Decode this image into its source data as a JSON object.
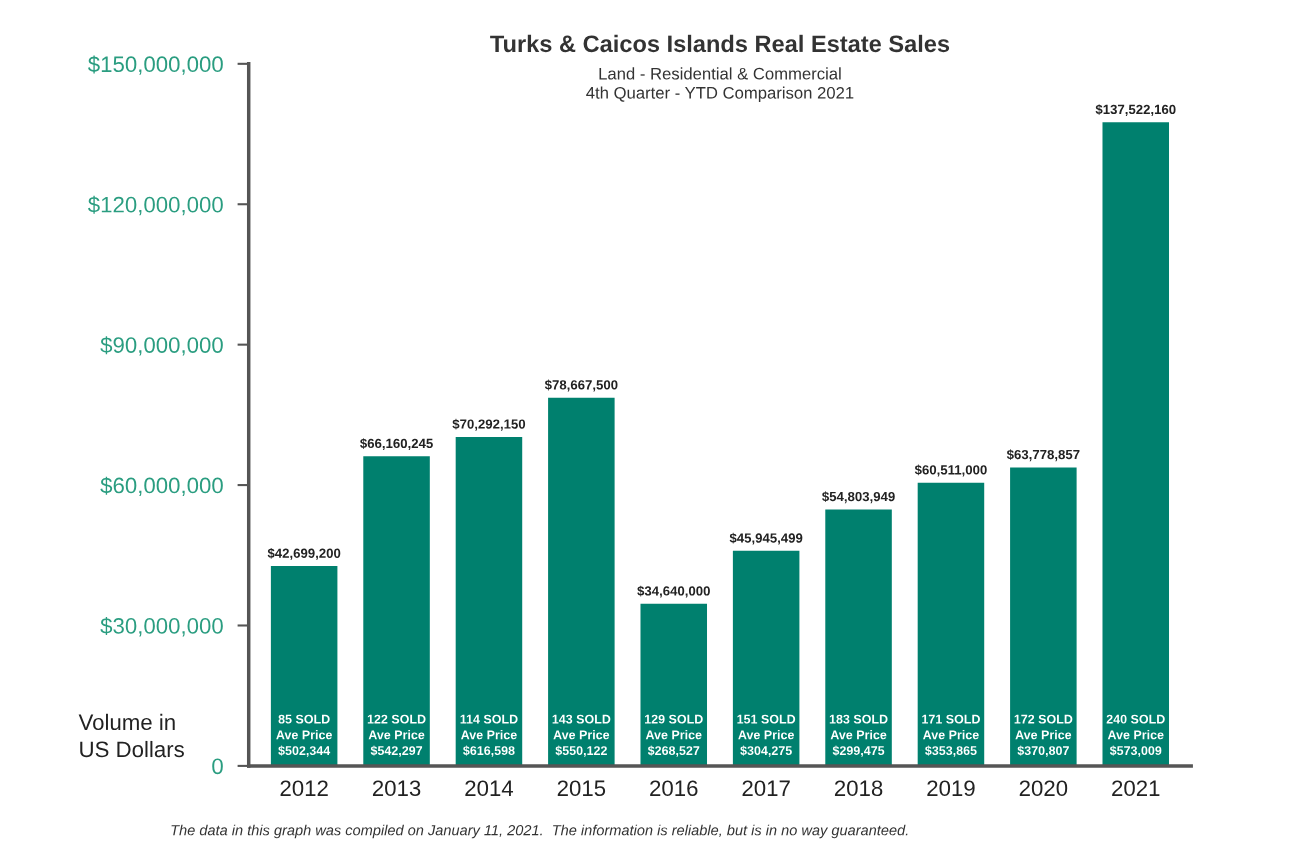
{
  "chart_data": {
    "type": "bar",
    "title": "Turks & Caicos Islands Real Estate Sales",
    "subtitle": "Land - Residential & Commercial\n4th Quarter - YTD Comparison 2021",
    "ylabel": "Volume in\nUS Dollars",
    "categories": [
      "2012",
      "2013",
      "2014",
      "2015",
      "2016",
      "2017",
      "2018",
      "2019",
      "2020",
      "2021"
    ],
    "values": [
      42699200,
      66160245,
      70292150,
      78667500,
      34640000,
      45945499,
      54803949,
      60511000,
      63778857,
      137522160
    ],
    "value_labels": [
      "$42,699,200",
      "$66,160,245",
      "$70,292,150",
      "$78,667,500",
      "$34,640,000",
      "$45,945,499",
      "$54,803,949",
      "$60,511,000",
      "$63,778,857",
      "$137,522,160"
    ],
    "color": "#00806e",
    "ylim": [
      0,
      150000000
    ],
    "yticks": [
      0,
      {
        "value": 30000000,
        "label": "$30,000,000"
      },
      {
        "value": 60000000,
        "label": "$60,000,000"
      },
      {
        "value": 90000000,
        "label": "$90,000,000"
      },
      {
        "value": 120000000,
        "label": "$120,000,000"
      },
      {
        "value": 150000000,
        "label": "$150,000,000"
      }
    ],
    "grid": false,
    "legend": false,
    "annotations": [
      "85 SOLD\nAve Price\n$502,344",
      "122 SOLD\nAve Price\n$542,297",
      "114 SOLD\nAve Price\n$616,598",
      "143 SOLD\nAve Price\n$550,122",
      "129 SOLD\nAve Price\n$268,527",
      "151 SOLD\nAve Price\n$304,275",
      "183 SOLD\nAve Price\n$299,475",
      "171 SOLD\nAve Price\n$353,865",
      "172 SOLD\nAve Price\n$370,807",
      "240 SOLD\nAve Price\n$573,009",
      "The data in this graph was compiled on January 11, 2021.  The information is reliable, but is in no way guaranteed."
    ]
  }
}
